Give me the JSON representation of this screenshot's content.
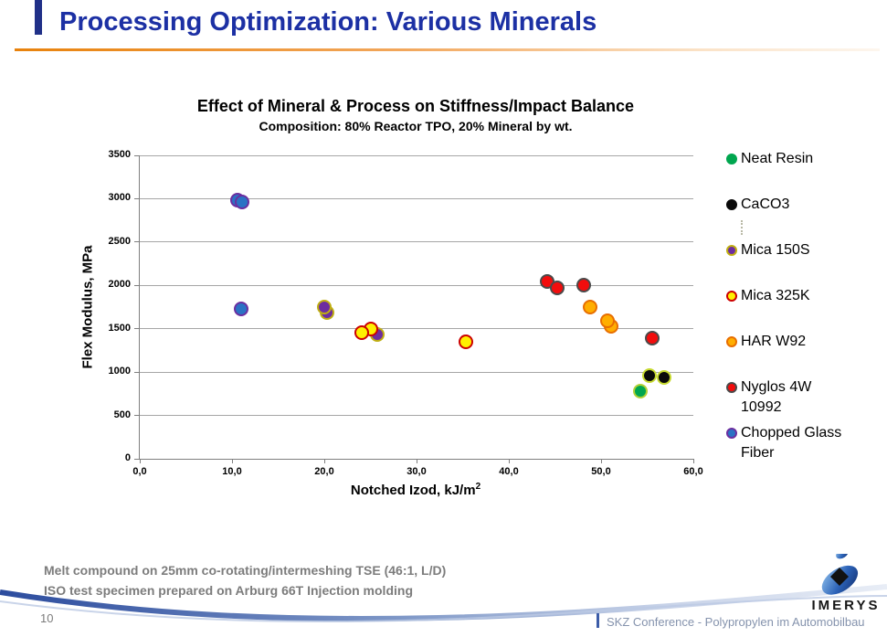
{
  "slide": {
    "title": "Processing Optimization: Various Minerals",
    "page_number": "10",
    "conference_caption": "SKZ Conference -  Polypropylen im Automobilbau",
    "footer_notes": [
      "Melt compound on 25mm co-rotating/intermeshing TSE (46:1, L/D)",
      "ISO test specimen prepared  on Arburg 66T Injection molding"
    ],
    "logo_text": "IMERYS"
  },
  "colors": {
    "title_blue": "#1C30A4",
    "accent_bar_blue": "#203088",
    "rule_orange": "#E8820C",
    "footer_gray": "#7C7C7C",
    "caption_gray": "#8593AD",
    "caption_bar_blue": "#3C5CA8",
    "axis_gray": "#7F7F7F",
    "grid_gray": "#A6A6A6",
    "logo_blue": "#1C3F94"
  },
  "chart_data": {
    "type": "scatter",
    "title": "Effect of Mineral & Process on Stiffness/Impact Balance",
    "subtitle": "Composition: 80% Reactor TPO, 20% Mineral by wt.",
    "xlabel": "Notched Izod, kJ/m",
    "xlabel_superscript": "2",
    "ylabel": "Flex Modulus, MPa",
    "xlim": [
      0,
      60
    ],
    "ylim": [
      0,
      3500
    ],
    "x_tick_values": [
      0,
      10,
      20,
      30,
      40,
      50,
      60
    ],
    "x_tick_labels": [
      "0,0",
      "10,0",
      "20,0",
      "30,0",
      "40,0",
      "50,0",
      "60,0"
    ],
    "y_tick_values": [
      0,
      500,
      1000,
      1500,
      2000,
      2500,
      3000,
      3500
    ],
    "grid": "horizontal-only",
    "legend_position": "right",
    "series": [
      {
        "name": "Neat Resin",
        "marker_fill": "#00A64F",
        "marker_border": "#B0D136",
        "legend_border": "#00A64F",
        "points": [
          [
            54.3,
            780
          ]
        ]
      },
      {
        "name": "CaCO3",
        "marker_fill": "#0A0A0A",
        "marker_border": "#C6D92F",
        "legend_border": "#0A0A0A",
        "points": [
          [
            56.8,
            935
          ],
          [
            55.2,
            960
          ]
        ]
      },
      {
        "name": "Mica 150S",
        "marker_fill": "#6D2DA0",
        "marker_border": "#BFAE12",
        "legend_border": "#BFAE12",
        "points": [
          [
            20.3,
            1690
          ],
          [
            20.0,
            1755
          ],
          [
            25.7,
            1430
          ]
        ]
      },
      {
        "name": "Mica 325K",
        "marker_fill": "#FFF000",
        "marker_border": "#CC0000",
        "legend_border": "#CC0000",
        "points": [
          [
            25.0,
            1500
          ],
          [
            24.1,
            1460
          ],
          [
            35.3,
            1350
          ]
        ]
      },
      {
        "name": "HAR W92",
        "marker_fill": "#FFAE00",
        "marker_border": "#E86E00",
        "legend_border": "#E86E00",
        "points": [
          [
            48.8,
            1750
          ],
          [
            51.1,
            1530
          ],
          [
            50.7,
            1590
          ]
        ]
      },
      {
        "name": "Nyglos 4W 10992",
        "marker_fill": "#F20D0D",
        "marker_border": "#4A4A4A",
        "legend_border": "#4A4A4A",
        "points": [
          [
            44.2,
            2050
          ],
          [
            45.2,
            1975
          ],
          [
            48.1,
            2000
          ],
          [
            55.5,
            1390
          ]
        ]
      },
      {
        "name": "Chopped Glass Fiber",
        "marker_fill": "#2B72C4",
        "marker_border": "#6B2FA0",
        "legend_border": "#6B2FA0",
        "points": [
          [
            10.6,
            2980
          ],
          [
            11.1,
            2960
          ],
          [
            11.0,
            1730
          ]
        ]
      }
    ]
  }
}
